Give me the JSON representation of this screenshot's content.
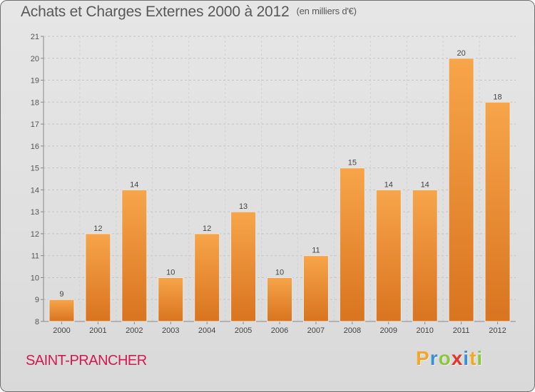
{
  "header": {
    "title": "Achats et Charges Externes 2000 à 2012",
    "unit": "(en milliers d'€)"
  },
  "footer": {
    "commune": "SAINT-PRANCHER",
    "logo_letters": [
      "P",
      "r",
      "o",
      "x",
      "i",
      "t",
      "i"
    ],
    "logo_colors": [
      "#f5a623",
      "#3a8fd6",
      "#8dc63f",
      "#e8332a",
      "#3a8fd6",
      "#f5a623",
      "#8dc63f"
    ]
  },
  "chart_data": {
    "type": "bar",
    "title": "Achats et Charges Externes 2000 à 2012",
    "subtitle": "(en milliers d'€)",
    "xlabel": "",
    "ylabel": "",
    "categories": [
      "2000",
      "2001",
      "2002",
      "2003",
      "2004",
      "2005",
      "2006",
      "2007",
      "2008",
      "2009",
      "2010",
      "2011",
      "2012"
    ],
    "values": [
      9,
      12,
      14,
      10,
      12,
      13,
      10,
      11,
      15,
      14,
      14,
      20,
      18
    ],
    "ylim": [
      8,
      21
    ],
    "yticks": [
      8,
      9,
      10,
      11,
      12,
      13,
      14,
      15,
      16,
      17,
      18,
      19,
      20,
      21
    ],
    "grid": "horizontal dashed",
    "legend": "none",
    "bar_color_top": "#f7a54a",
    "bar_color_bottom": "#d9741f"
  }
}
